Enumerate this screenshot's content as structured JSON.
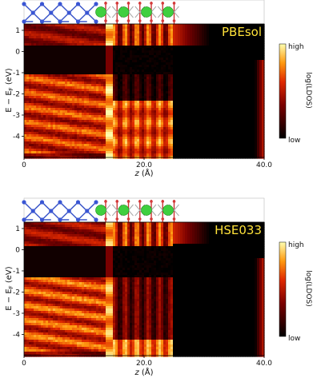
{
  "chart_data": [
    {
      "type": "heatmap",
      "title": "PBEsol",
      "xlabel": "z (Å)",
      "ylabel": "E − E_F (eV)",
      "xlim": [
        0,
        40
      ],
      "ylim": [
        -5,
        1.3
      ],
      "xticks": [
        "0",
        "20.0",
        "40.0"
      ],
      "yticks": [
        "1",
        "0",
        "-1",
        "-2",
        "-3",
        "-4"
      ],
      "colorbar": {
        "label": "log(LDOS)",
        "high": "high",
        "low": "low"
      },
      "colors": {
        "low": "#000000",
        "mid": "#c81a00",
        "high": "#ffff40"
      },
      "gap_top_eV": 0.25,
      "gap_bottom_eV": -1.05,
      "regions": [
        {
          "name": "substrate",
          "z": [
            0,
            13.5
          ],
          "intensity": 0.75
        },
        {
          "name": "interface",
          "z": [
            13.5,
            15
          ],
          "intensity": 1.0
        },
        {
          "name": "film",
          "z": [
            15,
            25
          ],
          "intensity": 0.9
        },
        {
          "name": "vacuum",
          "z": [
            25,
            40
          ],
          "intensity": 0.0
        }
      ],
      "atoms": {
        "blue_z": [
          1.5,
          4.5,
          7.5,
          10.5
        ],
        "green_z": [
          12.8,
          16.6,
          20.4,
          24.0
        ]
      }
    },
    {
      "type": "heatmap",
      "title": "HSE033",
      "xlabel": "z (Å)",
      "ylabel": "E − E_F (eV)",
      "xlim": [
        0,
        40
      ],
      "ylim": [
        -5,
        1.3
      ],
      "xticks": [
        "0",
        "20.0",
        "40.0"
      ],
      "yticks": [
        "1",
        "0",
        "-1",
        "-2",
        "-3",
        "-4"
      ],
      "colorbar": {
        "label": "log(LDOS)",
        "high": "high",
        "low": "low"
      },
      "colors": {
        "low": "#000000",
        "mid": "#c81a00",
        "high": "#ffff40"
      },
      "gap_top_eV": 0.2,
      "gap_bottom_eV": -1.3,
      "regions": [
        {
          "name": "substrate",
          "z": [
            0,
            13.5
          ],
          "intensity": 0.8
        },
        {
          "name": "interface",
          "z": [
            13.5,
            15
          ],
          "intensity": 0.95
        },
        {
          "name": "film",
          "z": [
            15,
            25
          ],
          "intensity": 0.55
        },
        {
          "name": "vacuum",
          "z": [
            25,
            40
          ],
          "intensity": 0.0
        }
      ],
      "atoms": {
        "blue_z": [
          1.5,
          4.5,
          7.5,
          10.5
        ],
        "green_z": [
          12.8,
          16.6,
          20.4,
          24.0
        ]
      }
    }
  ]
}
